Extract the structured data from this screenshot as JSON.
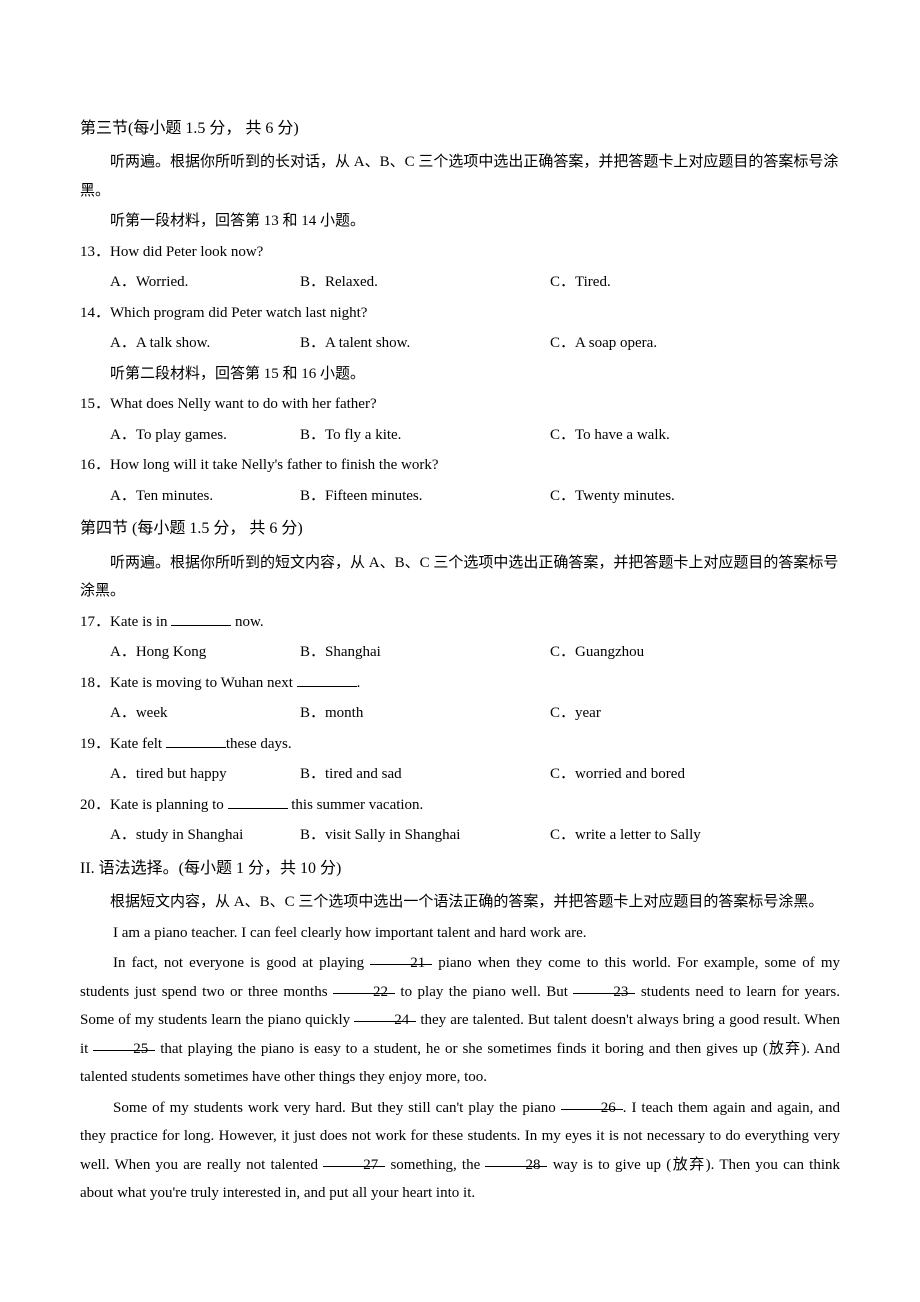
{
  "section3": {
    "heading": "第三节(每小题 1.5 分，  共 6 分)",
    "instruction": "听两遍。根据你所听到的长对话，从 A、B、C 三个选项中选出正确答案，并把答题卡上对应题目的答案标号涂黑。",
    "sub1": "听第一段材料，回答第 13 和 14 小题。",
    "q13": {
      "num": "13．",
      "text": "How did Peter look now?",
      "a": "A．Worried.",
      "b": "B．Relaxed.",
      "c": "C．Tired."
    },
    "q14": {
      "num": "14．",
      "text": "Which program did Peter watch last night?",
      "a": "A．A talk show.",
      "b": "B．A talent show.",
      "c": "C．A soap opera."
    },
    "sub2": "听第二段材料，回答第 15 和 16 小题。",
    "q15": {
      "num": "15．",
      "text": "What does Nelly want to do with her father?",
      "a": "A．To play games.",
      "b": "B．To fly a kite.",
      "c": "C．To have a walk."
    },
    "q16": {
      "num": "16．",
      "text": "How long will it take Nelly's father to finish the work?",
      "a": "A．Ten minutes.",
      "b": "B．Fifteen minutes.",
      "c": "C．Twenty minutes."
    }
  },
  "section4": {
    "heading": "第四节 (每小题 1.5 分，  共 6 分)",
    "instruction": "听两遍。根据你所听到的短文内容，从 A、B、C 三个选项中选出正确答案，并把答题卡上对应题目的答案标号涂黑。",
    "q17": {
      "num": "17．",
      "pre": "Kate is in ",
      "post": " now.",
      "a": "A．Hong Kong",
      "b": "B．Shanghai",
      "c": "C．Guangzhou"
    },
    "q18": {
      "num": "18．",
      "pre": "Kate is moving to Wuhan next ",
      "post": ".",
      "a": "A．week",
      "b": "B．month",
      "c": "C．year"
    },
    "q19": {
      "num": "19．",
      "pre": "Kate felt ",
      "post": "these days.",
      "a": "A．tired but happy",
      "b": "B．tired and sad",
      "c": "C．worried and bored"
    },
    "q20": {
      "num": "20．",
      "pre": "Kate is planning to ",
      "post": " this summer vacation.",
      "a": "A．study in Shanghai",
      "b": "B．visit Sally in Shanghai",
      "c": "C．write a letter to Sally"
    }
  },
  "grammar": {
    "heading": "II. 语法选择。(每小题 1 分，共 10 分)",
    "instruction": "根据短文内容，从 A、B、C 三个选项中选出一个语法正确的答案，并把答题卡上对应题目的答案标号涂黑。",
    "p1": "I am a piano teacher. I can feel clearly how important talent and hard work are.",
    "p2a": "In fact, not everyone is good at playing ",
    "b21": "21",
    "p2b": " piano when they come to this world. For example, some of my students just spend two or three months ",
    "b22": "22",
    "p2c": " to play the piano well. But ",
    "b23": "23",
    "p2d": " students need to learn for years. Some of my students learn the piano quickly ",
    "b24": "24",
    "p2e": " they are talented. But talent doesn't always bring a good result. When it ",
    "b25": "25",
    "p2f": " that playing the piano is easy to a student, he or she sometimes finds it boring and then gives up (放弃). And talented students sometimes have other things they enjoy more, too.",
    "p3a": "Some of my students work very hard. But they still can't play the piano ",
    "b26": "26",
    "p3b": ". I teach them again and again, and they practice for long. However, it just does not work for these students. In my eyes it is not necessary to do everything very well. When you are really not talented ",
    "b27": "27",
    "p3c": " something, the ",
    "b28": "28",
    "p3d": " way is to give up (放弃). Then you can think about what you're truly interested in, and put all your heart into it."
  }
}
